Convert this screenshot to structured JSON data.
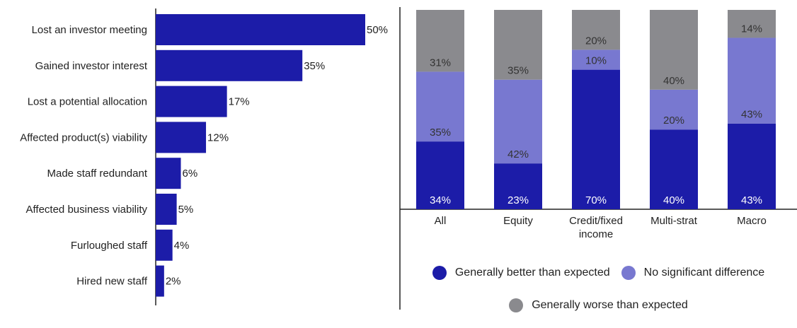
{
  "chart_data": [
    {
      "type": "bar",
      "orientation": "horizontal",
      "categories": [
        "Lost an investor meeting",
        "Gained investor interest",
        "Lost a potential allocation",
        "Affected product(s) viability",
        "Made staff redundant",
        "Affected business viability",
        "Furloughed staff",
        "Hired new staff"
      ],
      "values": [
        50,
        35,
        17,
        12,
        6,
        5,
        4,
        2
      ],
      "value_labels": [
        "50%",
        "35%",
        "17%",
        "12%",
        "6%",
        "5%",
        "4%",
        "2%"
      ],
      "xlim": [
        0,
        50
      ],
      "color": "#1c1ca8",
      "grid": false
    },
    {
      "type": "bar",
      "stacked": true,
      "categories": [
        "All",
        "Equity",
        "Credit/fixed income",
        "Multi-strat",
        "Macro"
      ],
      "category_lines": [
        [
          "All"
        ],
        [
          "Equity"
        ],
        [
          "Credit/fixed",
          "income"
        ],
        [
          "Multi-strat"
        ],
        [
          "Macro"
        ]
      ],
      "series": [
        {
          "name": "Generally better than expected",
          "color": "#1c1ca8",
          "values": [
            34,
            23,
            70,
            40,
            43
          ],
          "labels": [
            "34%",
            "23%",
            "70%",
            "40%",
            "43%"
          ]
        },
        {
          "name": "No significant difference",
          "color": "#7878d0",
          "values": [
            35,
            42,
            10,
            20,
            43
          ],
          "labels": [
            "35%",
            "42%",
            "10%",
            "20%",
            "43%"
          ]
        },
        {
          "name": "Generally worse than expected",
          "color": "#8a8a8e",
          "values": [
            31,
            35,
            20,
            40,
            14
          ],
          "labels": [
            "31%",
            "35%",
            "20%",
            "40%",
            "14%"
          ]
        }
      ],
      "ylim": [
        0,
        100
      ],
      "legend_position": "bottom",
      "grid": false
    }
  ]
}
